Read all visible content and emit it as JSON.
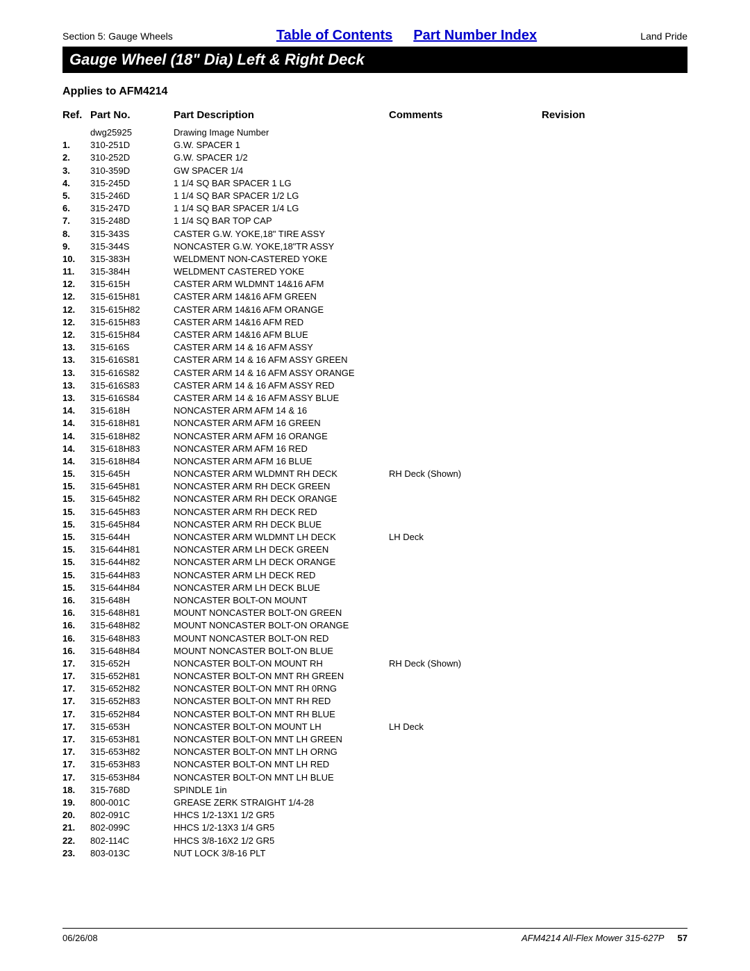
{
  "header": {
    "section_label": "Section 5: Gauge Wheels",
    "link_toc": "Table of Contents",
    "link_pni": "Part Number Index",
    "brand": "Land Pride"
  },
  "title": "Gauge Wheel (18\" Dia) Left & Right Deck",
  "applies": "Applies to AFM4214",
  "columns": {
    "ref": "Ref.",
    "part": "Part No.",
    "desc": "Part Description",
    "comm": "Comments",
    "rev": "Revision"
  },
  "rows": [
    {
      "ref": "",
      "part": "dwg25925",
      "desc": "Drawing Image Number",
      "comm": ""
    },
    {
      "ref": "1.",
      "part": "310-251D",
      "desc": "G.W. SPACER 1",
      "comm": ""
    },
    {
      "ref": "2.",
      "part": "310-252D",
      "desc": "G.W. SPACER 1/2",
      "comm": ""
    },
    {
      "ref": "3.",
      "part": "310-359D",
      "desc": "GW SPACER 1/4",
      "comm": ""
    },
    {
      "ref": "4.",
      "part": "315-245D",
      "desc": "1 1/4 SQ BAR SPACER 1 LG",
      "comm": ""
    },
    {
      "ref": "5.",
      "part": "315-246D",
      "desc": "1 1/4 SQ BAR SPACER 1/2 LG",
      "comm": ""
    },
    {
      "ref": "6.",
      "part": "315-247D",
      "desc": "1 1/4 SQ BAR SPACER 1/4 LG",
      "comm": ""
    },
    {
      "ref": "7.",
      "part": "315-248D",
      "desc": "1 1/4 SQ BAR TOP CAP",
      "comm": ""
    },
    {
      "ref": "8.",
      "part": "315-343S",
      "desc": "CASTER G.W. YOKE,18\" TIRE ASSY",
      "comm": ""
    },
    {
      "ref": "9.",
      "part": "315-344S",
      "desc": "NONCASTER G.W. YOKE,18\"TR ASSY",
      "comm": ""
    },
    {
      "ref": "10.",
      "part": "315-383H",
      "desc": "WELDMENT NON-CASTERED YOKE",
      "comm": ""
    },
    {
      "ref": "11.",
      "part": "315-384H",
      "desc": "WELDMENT CASTERED YOKE",
      "comm": ""
    },
    {
      "ref": "12.",
      "part": "315-615H",
      "desc": "CASTER ARM WLDMNT 14&16 AFM",
      "comm": ""
    },
    {
      "ref": "12.",
      "part": "315-615H81",
      "desc": "CASTER ARM 14&16 AFM GREEN",
      "comm": ""
    },
    {
      "ref": "12.",
      "part": "315-615H82",
      "desc": "CASTER ARM 14&16 AFM ORANGE",
      "comm": ""
    },
    {
      "ref": "12.",
      "part": "315-615H83",
      "desc": "CASTER ARM 14&16 AFM RED",
      "comm": ""
    },
    {
      "ref": "12.",
      "part": "315-615H84",
      "desc": "CASTER ARM 14&16 AFM BLUE",
      "comm": ""
    },
    {
      "ref": "13.",
      "part": "315-616S",
      "desc": "CASTER ARM 14 & 16 AFM ASSY",
      "comm": ""
    },
    {
      "ref": "13.",
      "part": "315-616S81",
      "desc": "CASTER ARM 14 & 16 AFM ASSY GREEN",
      "comm": ""
    },
    {
      "ref": "13.",
      "part": "315-616S82",
      "desc": "CASTER ARM 14 & 16 AFM ASSY ORANGE",
      "comm": ""
    },
    {
      "ref": "13.",
      "part": "315-616S83",
      "desc": "CASTER ARM 14 & 16 AFM ASSY RED",
      "comm": ""
    },
    {
      "ref": "13.",
      "part": "315-616S84",
      "desc": "CASTER ARM 14 & 16 AFM ASSY BLUE",
      "comm": ""
    },
    {
      "ref": "14.",
      "part": "315-618H",
      "desc": "NONCASTER ARM AFM 14 & 16",
      "comm": ""
    },
    {
      "ref": "14.",
      "part": "315-618H81",
      "desc": "NONCASTER ARM AFM 16 GREEN",
      "comm": ""
    },
    {
      "ref": "14.",
      "part": "315-618H82",
      "desc": "NONCASTER ARM AFM 16 ORANGE",
      "comm": ""
    },
    {
      "ref": "14.",
      "part": "315-618H83",
      "desc": "NONCASTER ARM AFM 16 RED",
      "comm": ""
    },
    {
      "ref": "14.",
      "part": "315-618H84",
      "desc": "NONCASTER ARM AFM 16 BLUE",
      "comm": ""
    },
    {
      "ref": "15.",
      "part": "315-645H",
      "desc": "NONCASTER ARM WLDMNT RH DECK",
      "comm": "RH Deck (Shown)"
    },
    {
      "ref": "15.",
      "part": "315-645H81",
      "desc": "NONCASTER ARM RH DECK GREEN",
      "comm": ""
    },
    {
      "ref": "15.",
      "part": "315-645H82",
      "desc": "NONCASTER ARM RH DECK ORANGE",
      "comm": ""
    },
    {
      "ref": "15.",
      "part": "315-645H83",
      "desc": "NONCASTER ARM RH DECK RED",
      "comm": ""
    },
    {
      "ref": "15.",
      "part": "315-645H84",
      "desc": "NONCASTER ARM RH DECK BLUE",
      "comm": ""
    },
    {
      "ref": "15.",
      "part": "315-644H",
      "desc": "NONCASTER ARM WLDMNT LH DECK",
      "comm": "LH Deck"
    },
    {
      "ref": "15.",
      "part": "315-644H81",
      "desc": "NONCASTER ARM LH DECK GREEN",
      "comm": ""
    },
    {
      "ref": "15.",
      "part": "315-644H82",
      "desc": "NONCASTER ARM LH DECK ORANGE",
      "comm": ""
    },
    {
      "ref": "15.",
      "part": "315-644H83",
      "desc": "NONCASTER ARM LH DECK RED",
      "comm": ""
    },
    {
      "ref": "15.",
      "part": "315-644H84",
      "desc": "NONCASTER ARM LH DECK BLUE",
      "comm": ""
    },
    {
      "ref": "16.",
      "part": "315-648H",
      "desc": "NONCASTER BOLT-ON MOUNT",
      "comm": ""
    },
    {
      "ref": "16.",
      "part": "315-648H81",
      "desc": "MOUNT NONCASTER BOLT-ON GREEN",
      "comm": ""
    },
    {
      "ref": "16.",
      "part": "315-648H82",
      "desc": "MOUNT NONCASTER BOLT-ON ORANGE",
      "comm": ""
    },
    {
      "ref": "16.",
      "part": "315-648H83",
      "desc": "MOUNT NONCASTER BOLT-ON RED",
      "comm": ""
    },
    {
      "ref": "16.",
      "part": "315-648H84",
      "desc": "MOUNT NONCASTER BOLT-ON BLUE",
      "comm": ""
    },
    {
      "ref": "17.",
      "part": "315-652H",
      "desc": "NONCASTER BOLT-ON MOUNT RH",
      "comm": "RH Deck (Shown)"
    },
    {
      "ref": "17.",
      "part": "315-652H81",
      "desc": "NONCASTER BOLT-ON MNT RH GREEN",
      "comm": ""
    },
    {
      "ref": "17.",
      "part": "315-652H82",
      "desc": "NONCASTER BOLT-ON MNT RH 0RNG",
      "comm": ""
    },
    {
      "ref": "17.",
      "part": "315-652H83",
      "desc": "NONCASTER BOLT-ON MNT RH RED",
      "comm": ""
    },
    {
      "ref": "17.",
      "part": "315-652H84",
      "desc": "NONCASTER BOLT-ON MNT RH BLUE",
      "comm": ""
    },
    {
      "ref": "17.",
      "part": "315-653H",
      "desc": "NONCASTER BOLT-ON MOUNT LH",
      "comm": "LH Deck"
    },
    {
      "ref": "17.",
      "part": "315-653H81",
      "desc": "NONCASTER BOLT-ON MNT LH GREEN",
      "comm": ""
    },
    {
      "ref": "17.",
      "part": "315-653H82",
      "desc": "NONCASTER BOLT-ON MNT LH ORNG",
      "comm": ""
    },
    {
      "ref": "17.",
      "part": "315-653H83",
      "desc": "NONCASTER BOLT-ON MNT LH RED",
      "comm": ""
    },
    {
      "ref": "17.",
      "part": "315-653H84",
      "desc": "NONCASTER BOLT-ON MNT LH BLUE",
      "comm": ""
    },
    {
      "ref": "18.",
      "part": "315-768D",
      "desc": "SPINDLE 1in",
      "comm": ""
    },
    {
      "ref": "19.",
      "part": "800-001C",
      "desc": "GREASE ZERK STRAIGHT 1/4-28",
      "comm": ""
    },
    {
      "ref": "20.",
      "part": "802-091C",
      "desc": "HHCS 1/2-13X1 1/2 GR5",
      "comm": ""
    },
    {
      "ref": "21.",
      "part": "802-099C",
      "desc": "HHCS 1/2-13X3 1/4 GR5",
      "comm": ""
    },
    {
      "ref": "22.",
      "part": "802-114C",
      "desc": "HHCS 3/8-16X2 1/2 GR5",
      "comm": ""
    },
    {
      "ref": "23.",
      "part": "803-013C",
      "desc": "NUT LOCK 3/8-16 PLT",
      "comm": ""
    }
  ],
  "footer": {
    "date": "06/26/08",
    "doc": "AFM4214 All-Flex Mower 315-627P",
    "page": "57"
  }
}
